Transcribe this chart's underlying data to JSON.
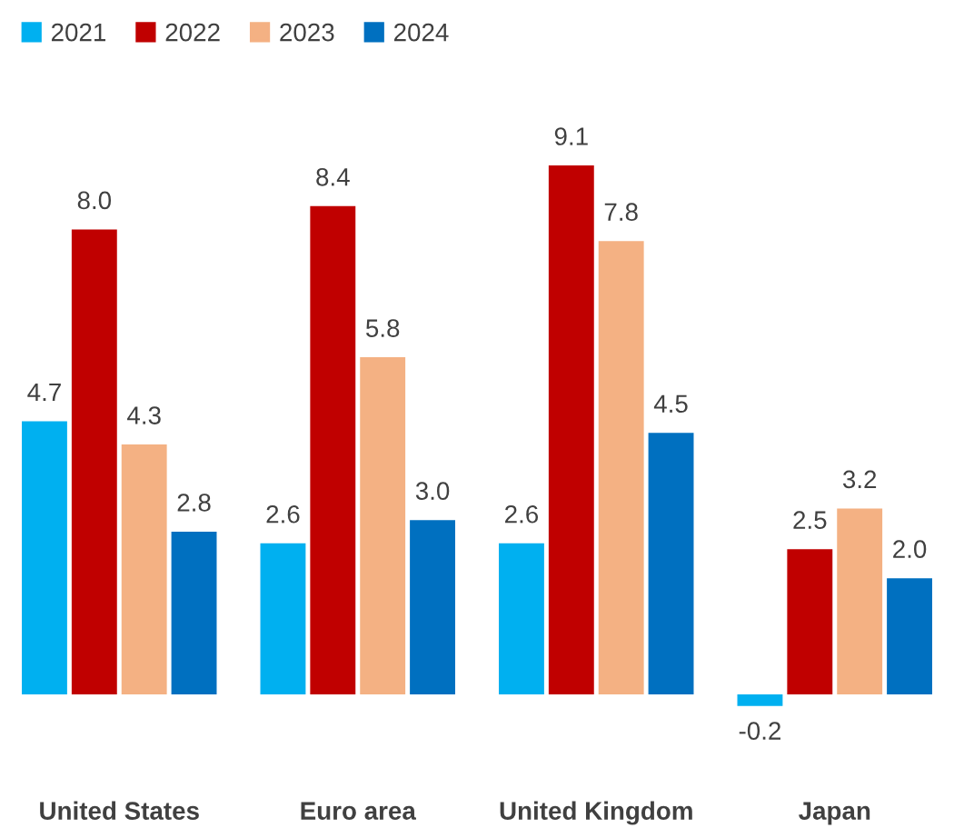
{
  "chart_data": {
    "type": "bar",
    "categories": [
      "United States",
      "Euro area",
      "United Kingdom",
      "Japan"
    ],
    "series": [
      {
        "name": "2021",
        "color": "#00b0f0",
        "values": [
          4.7,
          2.6,
          2.6,
          -0.2
        ],
        "value_labels": [
          "4.7",
          "2.6",
          "2.6",
          "-0.2"
        ]
      },
      {
        "name": "2022",
        "color": "#c00000",
        "values": [
          8.0,
          8.4,
          9.1,
          2.5
        ],
        "value_labels": [
          "8.0",
          "8.4",
          "9.1",
          "2.5"
        ]
      },
      {
        "name": "2023",
        "color": "#f4b183",
        "values": [
          4.3,
          5.8,
          7.8,
          3.2
        ],
        "value_labels": [
          "4.3",
          "5.8",
          "7.8",
          "3.2"
        ]
      },
      {
        "name": "2024",
        "color": "#0070c0",
        "values": [
          2.8,
          3.0,
          4.5,
          2.0
        ],
        "value_labels": [
          "2.8",
          "3.0",
          "4.5",
          "2.0"
        ]
      }
    ],
    "legend": "top left",
    "grid": false
  }
}
